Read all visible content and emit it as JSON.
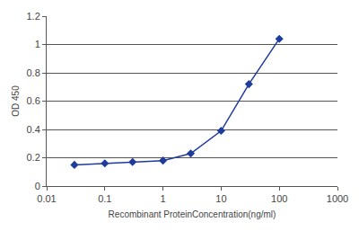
{
  "chart_data": {
    "type": "line",
    "x_label": "Recombinant ProteinConcentration(ng/ml)",
    "y_label": "OD 450",
    "x": [
      0.03,
      0.1,
      0.3,
      1,
      3,
      10,
      30,
      100
    ],
    "values": [
      0.15,
      0.16,
      0.17,
      0.18,
      0.23,
      0.39,
      0.72,
      1.04
    ],
    "color": "#1f3b9c",
    "marker": "diamond",
    "line_style": "solid",
    "log": "x",
    "xlim": [
      0.01,
      1000
    ],
    "xticks": [
      0.01,
      0.1,
      1,
      10,
      100,
      1000
    ],
    "ylim": [
      0,
      1.2
    ],
    "yticks": [
      0,
      0.2,
      0.4,
      0.6,
      0.8,
      1,
      1.2
    ],
    "grid": true
  }
}
